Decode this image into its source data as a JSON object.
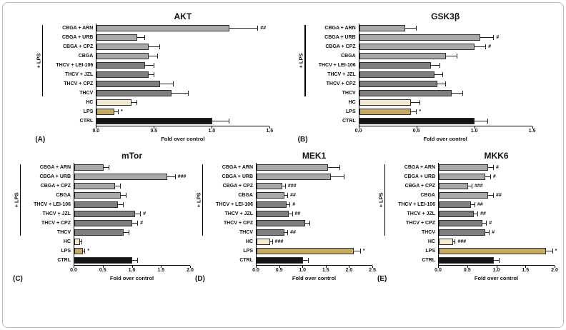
{
  "figure": {
    "group_label": "+ LPS",
    "bar_palette": {
      "cbga": "#a9a9a9",
      "thcv": "#7e7e7e",
      "hc": "#f1ead0",
      "lps": "#c4aa64",
      "ctrl": "#141414"
    },
    "color_key": [
      "cbga",
      "cbga",
      "cbga",
      "cbga",
      "thcv",
      "thcv",
      "thcv",
      "thcv",
      "hc",
      "lps",
      "ctrl"
    ]
  },
  "chart_data": [
    {
      "type": "bar",
      "orientation": "horizontal",
      "panel_label": "(A)",
      "title": "AKT",
      "xlabel": "Fold over control",
      "xlim": [
        0,
        1.5
      ],
      "xticks": [
        "0.0",
        "0.5",
        "1.0",
        "1.5"
      ],
      "group_label": "+ LPS",
      "categories": [
        "CBGA + ARN",
        "CBGA + URB",
        "CBGA + CPZ",
        "CBGA",
        "THCV + LEI-106",
        "THCV + JZL",
        "THCV + CPZ",
        "THCV",
        "HC",
        "LPS",
        "CTRL"
      ],
      "values": [
        1.15,
        0.35,
        0.45,
        0.45,
        0.42,
        0.45,
        0.55,
        0.65,
        0.3,
        0.15,
        1.0
      ],
      "errors": [
        0.25,
        0.07,
        0.1,
        0.08,
        0.08,
        0.05,
        0.12,
        0.15,
        0.05,
        0.04,
        0.15
      ],
      "annotations": [
        "##",
        "",
        "",
        "",
        "",
        "",
        "",
        "",
        "",
        "*",
        ""
      ]
    },
    {
      "type": "bar",
      "orientation": "horizontal",
      "panel_label": "(B)",
      "title": "GSK3β",
      "xlabel": "Fold over control",
      "xlim": [
        0,
        1.5
      ],
      "xticks": [
        "0.0",
        "0.5",
        "1.0",
        "1.5"
      ],
      "group_label": "+ LPS",
      "categories": [
        "CBGA + ARN",
        "CBGA + URB",
        "CBGA + CPZ",
        "CBGA",
        "THCV + LEI-106",
        "THCV + JZL",
        "THCV + CPZ",
        "THCV",
        "HC",
        "LPS",
        "CTRL"
      ],
      "values": [
        0.4,
        1.05,
        1.0,
        0.75,
        0.62,
        0.65,
        0.68,
        0.8,
        0.45,
        0.45,
        1.0
      ],
      "errors": [
        0.1,
        0.12,
        0.1,
        0.1,
        0.08,
        0.08,
        0.07,
        0.1,
        0.08,
        0.05,
        0.12
      ],
      "annotations": [
        "",
        "#",
        "#",
        "",
        "",
        "",
        "",
        "",
        "",
        "*",
        ""
      ]
    },
    {
      "type": "bar",
      "orientation": "horizontal",
      "panel_label": "(C)",
      "title": "mTor",
      "xlabel": "Fold over control",
      "xlim": [
        0,
        2.0
      ],
      "xticks": [
        "0.0",
        "0.5",
        "1.0",
        "1.5",
        "2.0"
      ],
      "group_label": "+ LPS",
      "categories": [
        "CBGA + ARN",
        "CBGA + URB",
        "CBGA + CPZ",
        "CBGA",
        "THCV + LEI-106",
        "THCV + JZL",
        "THCV + CPZ",
        "THCV",
        "HC",
        "LPS",
        "CTRL"
      ],
      "values": [
        0.5,
        1.6,
        0.7,
        0.8,
        0.75,
        1.05,
        1.0,
        0.85,
        0.1,
        0.15,
        1.0
      ],
      "errors": [
        0.1,
        0.15,
        0.1,
        0.1,
        0.1,
        0.1,
        0.1,
        0.1,
        0.03,
        0.04,
        0.1
      ],
      "annotations": [
        "",
        "###",
        "",
        "",
        "",
        "#",
        "#",
        "",
        "",
        "*",
        ""
      ]
    },
    {
      "type": "bar",
      "orientation": "horizontal",
      "panel_label": "(D)",
      "title": "MEK1",
      "xlabel": "Fold over control",
      "xlim": [
        0,
        2.5
      ],
      "xticks": [
        "0.0",
        "0.5",
        "1.0",
        "1.5",
        "2.0",
        "2.5"
      ],
      "group_label": "+ LPS",
      "categories": [
        "CBGA + ARN",
        "CBGA + URB",
        "CBGA + CPZ",
        "CBGA",
        "THCV + LEI-106",
        "THCV + JZL",
        "THCV + CPZ",
        "THCV",
        "HC",
        "LPS",
        "CTRL"
      ],
      "values": [
        1.55,
        1.6,
        0.55,
        0.6,
        0.65,
        0.7,
        1.05,
        0.6,
        0.3,
        2.1,
        1.0
      ],
      "errors": [
        0.25,
        0.3,
        0.08,
        0.08,
        0.08,
        0.08,
        0.1,
        0.08,
        0.05,
        0.15,
        0.12
      ],
      "annotations": [
        "",
        "",
        "###",
        "##",
        "#",
        "##",
        "",
        "##",
        "###",
        "*",
        ""
      ]
    },
    {
      "type": "bar",
      "orientation": "horizontal",
      "panel_label": "(E)",
      "title": "MKK6",
      "xlabel": "Fold over control",
      "xlim": [
        0,
        2.0
      ],
      "xticks": [
        "0.0",
        "0.5",
        "1.0",
        "1.5",
        "2.0"
      ],
      "group_label": "+ LPS",
      "categories": [
        "CBGA + ARN",
        "CBGA + URB",
        "CBGA + CPZ",
        "CBGA",
        "THCV + LEI-106",
        "THCV + JZL",
        "THCV + CPZ",
        "THCV",
        "HC",
        "LPS",
        "CTRL"
      ],
      "values": [
        0.85,
        0.8,
        0.5,
        0.85,
        0.55,
        0.6,
        0.75,
        0.8,
        0.25,
        1.85,
        0.95
      ],
      "errors": [
        0.1,
        0.1,
        0.08,
        0.1,
        0.08,
        0.08,
        0.08,
        0.08,
        0.04,
        0.12,
        0.1
      ],
      "annotations": [
        "#",
        "#",
        "###",
        "##",
        "##",
        "##",
        "#",
        "#",
        "###",
        "*",
        ""
      ]
    }
  ]
}
